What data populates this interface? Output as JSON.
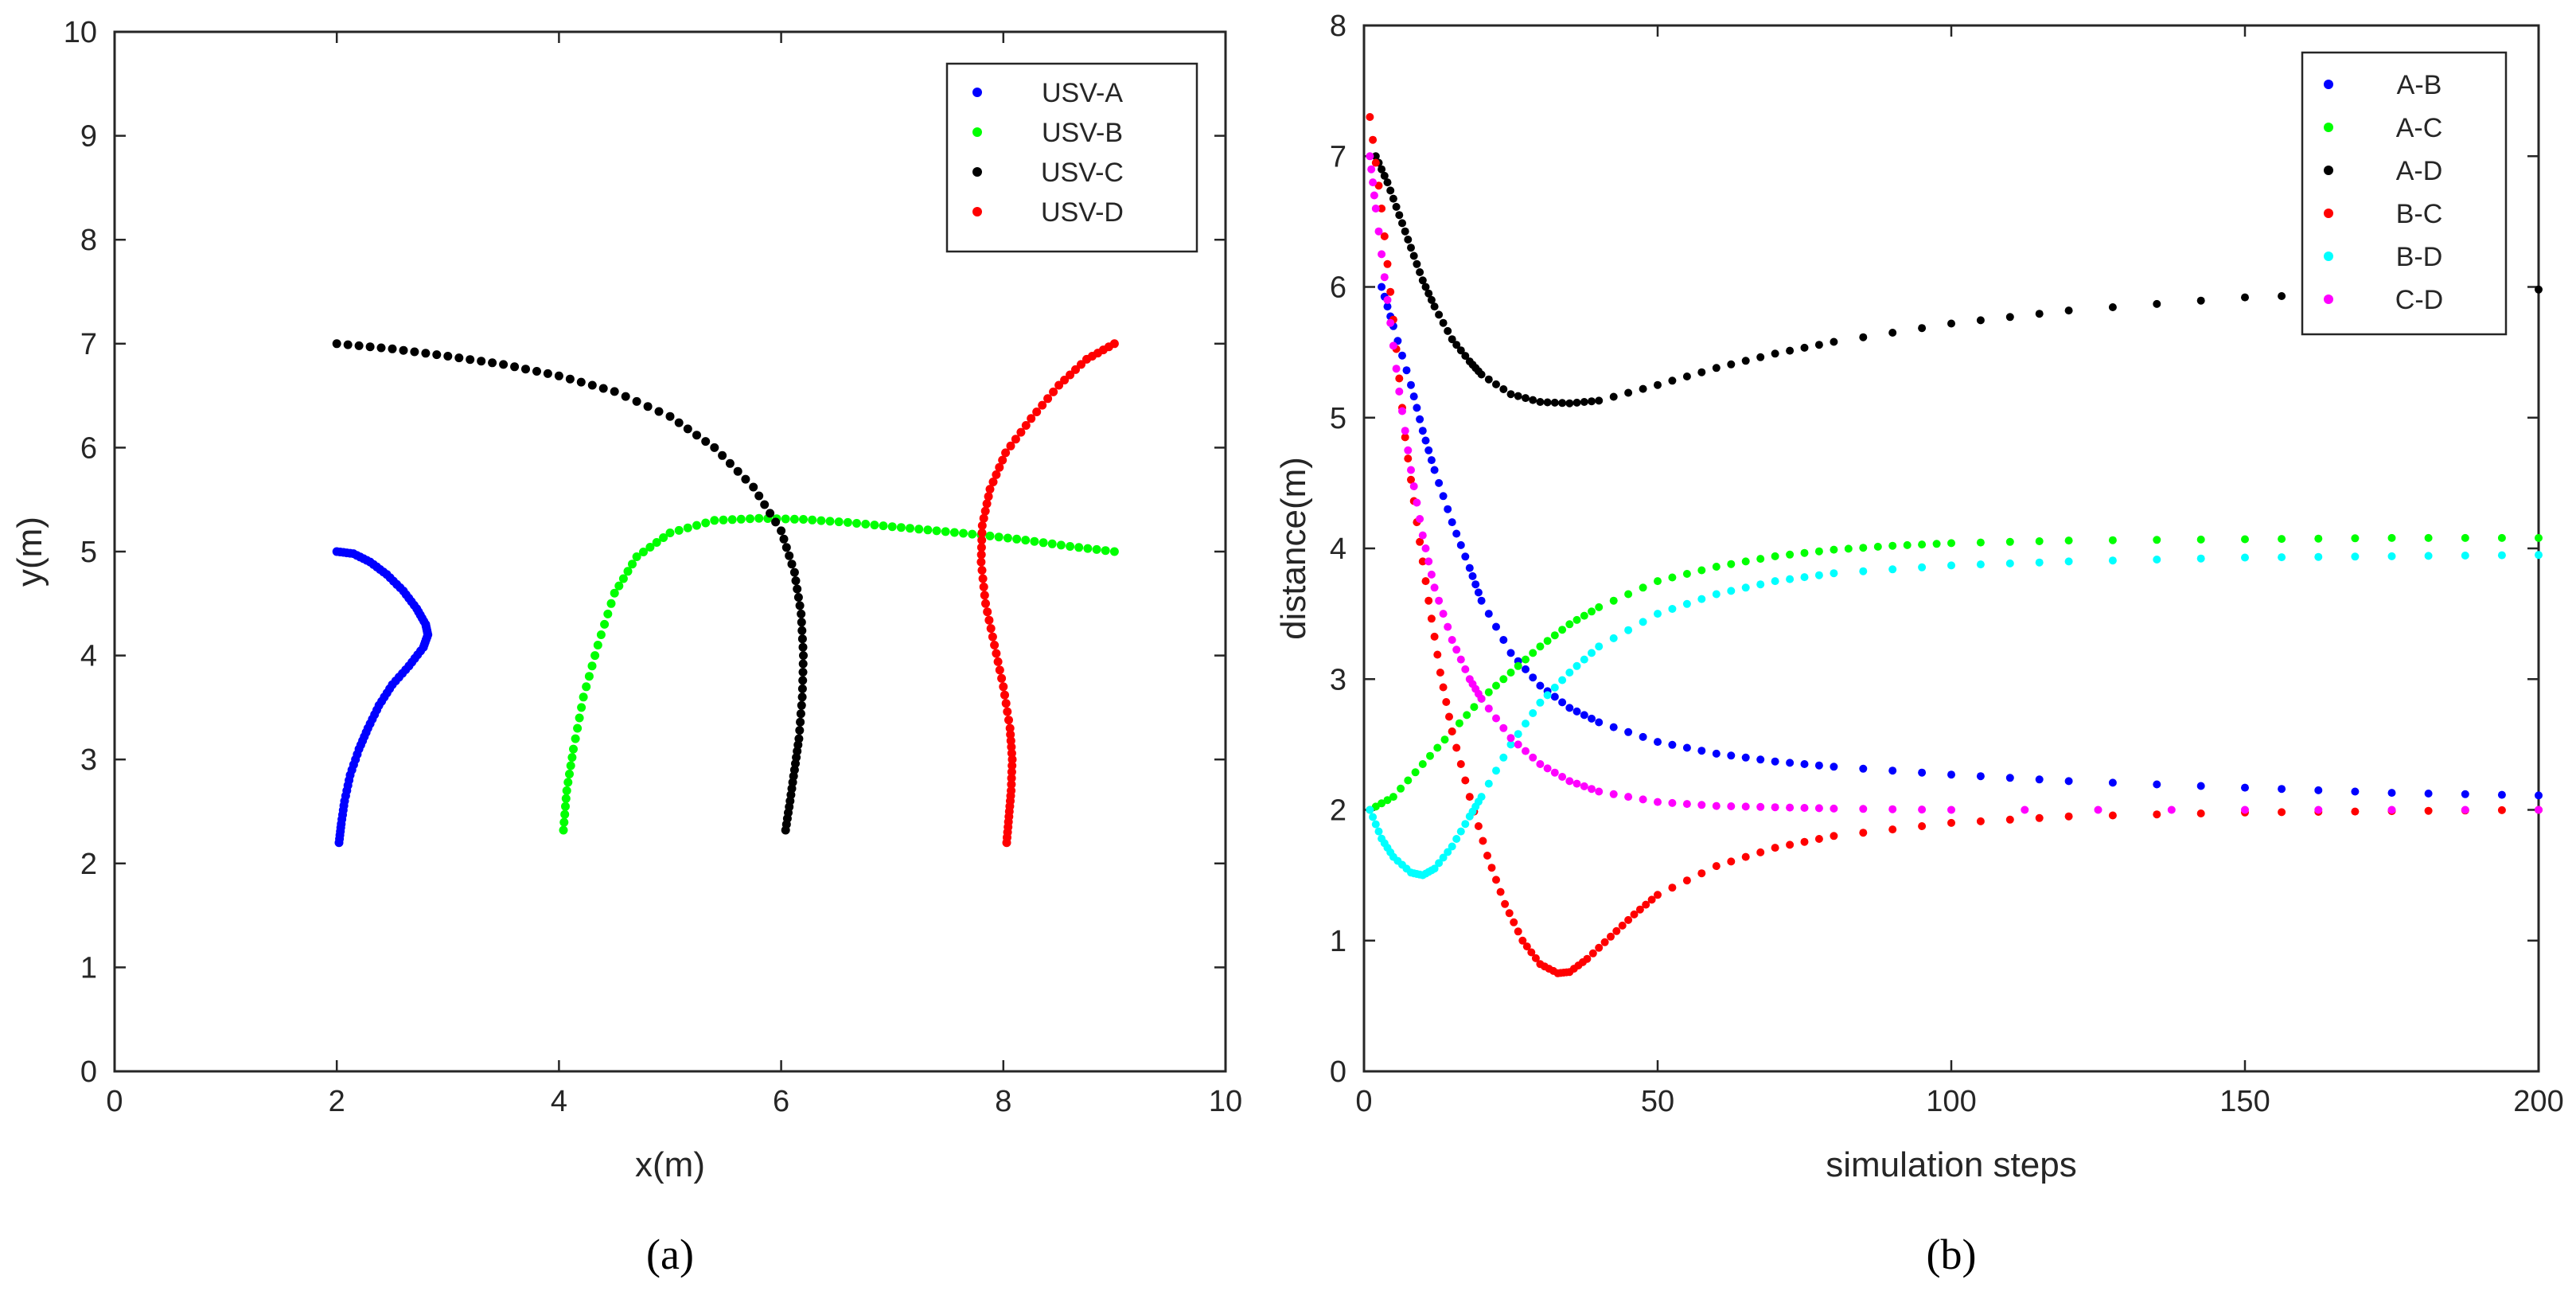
{
  "chart_data": [
    {
      "type": "scatter",
      "panel": "(a)",
      "xlabel": "x(m)",
      "ylabel": "y(m)",
      "xlim": [
        0,
        10
      ],
      "ylim": [
        0,
        10
      ],
      "xticks": [
        0,
        2,
        4,
        6,
        8,
        10
      ],
      "yticks": [
        0,
        1,
        2,
        3,
        4,
        5,
        6,
        7,
        8,
        9,
        10
      ],
      "grid": false,
      "legend_position": "top-right",
      "series": [
        {
          "name": "USV-A",
          "color": "#0000ff",
          "x": [
            2.0,
            2.15,
            2.3,
            2.45,
            2.6,
            2.72,
            2.8,
            2.82,
            2.78,
            2.65,
            2.5,
            2.38,
            2.28,
            2.2,
            2.12,
            2.07,
            2.04,
            2.02
          ],
          "y": [
            5.0,
            4.98,
            4.9,
            4.78,
            4.62,
            4.45,
            4.3,
            4.2,
            4.08,
            3.9,
            3.72,
            3.52,
            3.3,
            3.1,
            2.85,
            2.6,
            2.38,
            2.2
          ]
        },
        {
          "name": "USV-B",
          "color": "#00ff00",
          "x": [
            9.0,
            8.6,
            8.2,
            7.8,
            7.4,
            7.0,
            6.6,
            6.2,
            5.8,
            5.4,
            5.0,
            4.7,
            4.5,
            4.35,
            4.22,
            4.13,
            4.07,
            4.04
          ],
          "y": [
            5.0,
            5.05,
            5.11,
            5.16,
            5.2,
            5.24,
            5.28,
            5.31,
            5.32,
            5.3,
            5.18,
            4.95,
            4.6,
            4.1,
            3.6,
            3.1,
            2.7,
            2.32
          ]
        },
        {
          "name": "USV-C",
          "color": "#000000",
          "x": [
            2.0,
            2.5,
            3.0,
            3.5,
            4.0,
            4.5,
            5.0,
            5.4,
            5.75,
            6.0,
            6.12,
            6.18,
            6.2,
            6.19,
            6.16,
            6.12,
            6.08,
            6.04
          ],
          "y": [
            7.0,
            6.95,
            6.88,
            6.8,
            6.69,
            6.54,
            6.3,
            6.0,
            5.62,
            5.2,
            4.8,
            4.4,
            4.0,
            3.6,
            3.2,
            2.9,
            2.6,
            2.32
          ]
        },
        {
          "name": "USV-D",
          "color": "#ff0000",
          "x": [
            9.0,
            8.75,
            8.5,
            8.25,
            8.02,
            7.88,
            7.81,
            7.8,
            7.84,
            7.92,
            8.0,
            8.06,
            8.08,
            8.07,
            8.05,
            8.03
          ],
          "y": [
            7.0,
            6.85,
            6.6,
            6.28,
            5.95,
            5.6,
            5.25,
            4.9,
            4.5,
            4.1,
            3.7,
            3.3,
            3.0,
            2.7,
            2.45,
            2.2
          ]
        }
      ]
    },
    {
      "type": "scatter",
      "panel": "(b)",
      "xlabel": "simulation steps",
      "ylabel": "distance(m)",
      "xlim": [
        0,
        200
      ],
      "ylim": [
        0,
        8
      ],
      "xticks": [
        0,
        50,
        100,
        150,
        200
      ],
      "yticks": [
        0,
        1,
        2,
        3,
        4,
        5,
        6,
        7,
        8
      ],
      "grid": false,
      "legend_position": "top-right",
      "series": [
        {
          "name": "A-B",
          "color": "#0000ff",
          "x": [
            3,
            5,
            8,
            10,
            12,
            15,
            18,
            20,
            25,
            30,
            35,
            40,
            50,
            60,
            70,
            80,
            100,
            120,
            150,
            175,
            200
          ],
          "y": [
            6.0,
            5.7,
            5.25,
            4.9,
            4.6,
            4.2,
            3.85,
            3.6,
            3.2,
            2.95,
            2.78,
            2.67,
            2.52,
            2.43,
            2.37,
            2.33,
            2.27,
            2.22,
            2.17,
            2.13,
            2.11
          ]
        },
        {
          "name": "A-C",
          "color": "#00ff00",
          "x": [
            1,
            5,
            10,
            15,
            20,
            25,
            30,
            35,
            40,
            50,
            60,
            70,
            80,
            90,
            100,
            120,
            150,
            175,
            200
          ],
          "y": [
            2.0,
            2.1,
            2.35,
            2.6,
            2.85,
            3.05,
            3.25,
            3.42,
            3.55,
            3.75,
            3.86,
            3.94,
            3.99,
            4.02,
            4.04,
            4.06,
            4.07,
            4.08,
            4.08
          ]
        },
        {
          "name": "A-D",
          "color": "#000000",
          "x": [
            2,
            4,
            6,
            8,
            10,
            12,
            15,
            18,
            20,
            25,
            30,
            35,
            40,
            50,
            60,
            70,
            80,
            100,
            120,
            150,
            175,
            200
          ],
          "y": [
            7.0,
            6.8,
            6.55,
            6.3,
            6.05,
            5.85,
            5.6,
            5.43,
            5.33,
            5.18,
            5.12,
            5.11,
            5.13,
            5.25,
            5.38,
            5.49,
            5.58,
            5.72,
            5.82,
            5.92,
            5.96,
            5.98
          ]
        },
        {
          "name": "B-C",
          "color": "#ff0000",
          "x": [
            1,
            3,
            5,
            7,
            9,
            11,
            13,
            15,
            18,
            21,
            24,
            27,
            30,
            33,
            35,
            38,
            42,
            46,
            50,
            60,
            70,
            80,
            100,
            120,
            150,
            175,
            200
          ],
          "y": [
            7.3,
            6.6,
            5.75,
            4.85,
            4.2,
            3.6,
            3.05,
            2.6,
            2.1,
            1.65,
            1.28,
            1.0,
            0.82,
            0.75,
            0.76,
            0.86,
            1.03,
            1.2,
            1.35,
            1.57,
            1.71,
            1.8,
            1.9,
            1.95,
            1.98,
            1.99,
            2.0
          ]
        },
        {
          "name": "B-D",
          "color": "#00ffff",
          "x": [
            1,
            3,
            5,
            8,
            10,
            12,
            15,
            18,
            20,
            25,
            30,
            35,
            40,
            50,
            60,
            70,
            80,
            100,
            120,
            150,
            175,
            200
          ],
          "y": [
            2.0,
            1.78,
            1.64,
            1.52,
            1.5,
            1.55,
            1.72,
            1.95,
            2.1,
            2.5,
            2.82,
            3.05,
            3.25,
            3.5,
            3.65,
            3.75,
            3.81,
            3.87,
            3.9,
            3.93,
            3.94,
            3.95
          ]
        },
        {
          "name": "C-D",
          "color": "#ff00ff",
          "x": [
            1,
            2,
            4,
            6,
            8,
            10,
            12,
            15,
            18,
            20,
            25,
            30,
            35,
            40,
            50,
            60,
            70,
            80,
            100,
            150,
            200
          ],
          "y": [
            7.0,
            6.6,
            5.9,
            5.2,
            4.6,
            4.1,
            3.7,
            3.3,
            3.0,
            2.85,
            2.55,
            2.35,
            2.22,
            2.14,
            2.06,
            2.03,
            2.02,
            2.01,
            2.0,
            2.0,
            2.0
          ]
        }
      ]
    }
  ],
  "captions": {
    "a": "(a)",
    "b": "(b)"
  }
}
